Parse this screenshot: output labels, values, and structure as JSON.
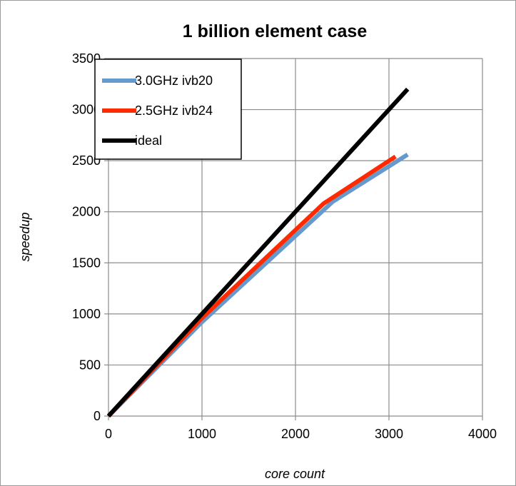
{
  "chart_data": {
    "type": "line",
    "title": "1 billion element case",
    "xlabel": "core count",
    "ylabel": "speedup",
    "xlim": [
      0,
      4000
    ],
    "ylim": [
      0,
      3500
    ],
    "xticks": [
      "0",
      "1000",
      "2000",
      "3000",
      "4000"
    ],
    "yticks": [
      "0",
      "500",
      "1000",
      "1500",
      "2000",
      "2500",
      "3000",
      "3500"
    ],
    "grid": true,
    "legend_position": "top-left",
    "series": [
      {
        "name": "3.0GHz ivb20",
        "color": "#6699cc",
        "x": [
          0,
          1000,
          2400,
          3200
        ],
        "y": [
          0,
          920,
          2100,
          2560
        ]
      },
      {
        "name": "2.5GHz ivb24",
        "color": "#ff2a00",
        "x": [
          0,
          1000,
          2300,
          3070
        ],
        "y": [
          0,
          960,
          2080,
          2540
        ]
      },
      {
        "name": "ideal",
        "color": "#000000",
        "x": [
          0,
          3200
        ],
        "y": [
          0,
          3200
        ]
      }
    ]
  }
}
